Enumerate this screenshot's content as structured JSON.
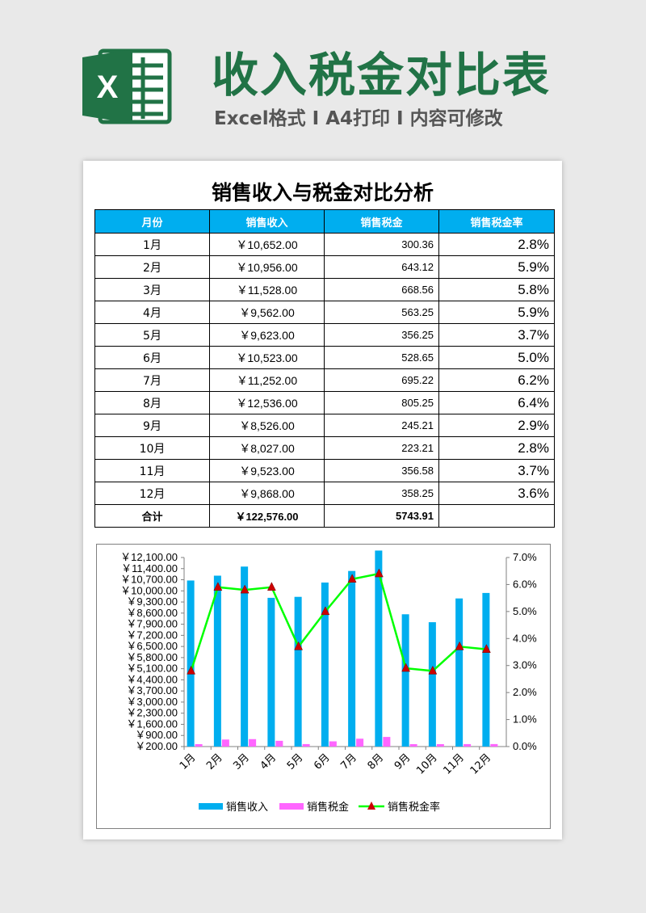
{
  "header": {
    "title": "收入税金对比表",
    "subtitle": "Excel格式 Ⅰ A4打印 Ⅰ 内容可修改",
    "logo_letter": "X",
    "logo_color": "#217346"
  },
  "doc": {
    "title": "销售收入与税金对比分析",
    "columns": [
      "月份",
      "销售收入",
      "销售税金",
      "销售税金率"
    ],
    "rows": [
      {
        "month": "1月",
        "revenue": "￥10,652.00",
        "tax": "300.36",
        "rate": "2.8%"
      },
      {
        "month": "2月",
        "revenue": "￥10,956.00",
        "tax": "643.12",
        "rate": "5.9%"
      },
      {
        "month": "3月",
        "revenue": "￥11,528.00",
        "tax": "668.56",
        "rate": "5.8%"
      },
      {
        "month": "4月",
        "revenue": "￥9,562.00",
        "tax": "563.25",
        "rate": "5.9%"
      },
      {
        "month": "5月",
        "revenue": "￥9,623.00",
        "tax": "356.25",
        "rate": "3.7%"
      },
      {
        "month": "6月",
        "revenue": "￥10,523.00",
        "tax": "528.65",
        "rate": "5.0%"
      },
      {
        "month": "7月",
        "revenue": "￥11,252.00",
        "tax": "695.22",
        "rate": "6.2%"
      },
      {
        "month": "8月",
        "revenue": "￥12,536.00",
        "tax": "805.25",
        "rate": "6.4%"
      },
      {
        "month": "9月",
        "revenue": "￥8,526.00",
        "tax": "245.21",
        "rate": "2.9%"
      },
      {
        "month": "10月",
        "revenue": "￥8,027.00",
        "tax": "223.21",
        "rate": "2.8%"
      },
      {
        "month": "11月",
        "revenue": "￥9,523.00",
        "tax": "356.58",
        "rate": "3.7%"
      },
      {
        "month": "12月",
        "revenue": "￥9,868.00",
        "tax": "358.25",
        "rate": "3.6%"
      }
    ],
    "total": {
      "label": "合计",
      "revenue": "￥122,576.00",
      "tax": "5743.91",
      "rate": ""
    },
    "header_color": "#00aeef"
  },
  "chart_data": {
    "type": "bar+line",
    "categories": [
      "1月",
      "2月",
      "3月",
      "4月",
      "5月",
      "6月",
      "7月",
      "8月",
      "9月",
      "10月",
      "11月",
      "12月"
    ],
    "series": [
      {
        "name": "销售收入",
        "type": "bar",
        "axis": "left",
        "color": "#00aeef",
        "values": [
          10652,
          10956,
          11528,
          9562,
          9623,
          10523,
          11252,
          12536,
          8526,
          8027,
          9523,
          9868
        ]
      },
      {
        "name": "销售税金",
        "type": "bar",
        "axis": "left",
        "color": "#ff66ff",
        "values": [
          300.36,
          643.12,
          668.56,
          563.25,
          356.25,
          528.65,
          695.22,
          805.25,
          245.21,
          223.21,
          356.58,
          358.25
        ]
      },
      {
        "name": "销售税金率",
        "type": "line",
        "axis": "right",
        "color": "#00ff00",
        "marker_color": "#cc0000",
        "values": [
          2.8,
          5.9,
          5.8,
          5.9,
          3.7,
          5.0,
          6.2,
          6.4,
          2.9,
          2.8,
          3.7,
          3.6
        ]
      }
    ],
    "y_left": {
      "min": 200,
      "max": 12100,
      "step": 700,
      "tick_labels": [
        "￥200.00",
        "￥900.00",
        "￥1,600.00",
        "￥2,300.00",
        "￥3,000.00",
        "￥3,700.00",
        "￥4,400.00",
        "￥5,100.00",
        "￥5,800.00",
        "￥6,500.00",
        "￥7,200.00",
        "￥7,900.00",
        "￥8,600.00",
        "￥9,300.00",
        "￥10,000.00",
        "￥10,700.00",
        "￥11,400.00",
        "￥12,100.00"
      ]
    },
    "y_right": {
      "min": 0,
      "max": 7,
      "step": 1,
      "tick_labels": [
        "0.0%",
        "1.0%",
        "2.0%",
        "3.0%",
        "4.0%",
        "5.0%",
        "6.0%",
        "7.0%"
      ]
    },
    "legend_position": "bottom",
    "grid": false
  }
}
